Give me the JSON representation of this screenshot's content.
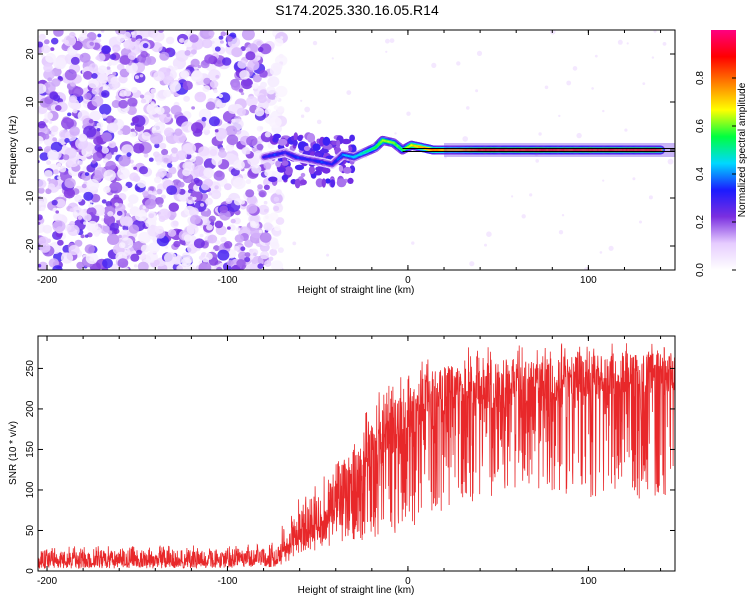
{
  "title": "S174.2025.330.16.05.R14",
  "chart_data": [
    {
      "type": "heatmap",
      "xlabel": "Height of straight line (km)",
      "ylabel": "Frequency (Hz)",
      "xlim": [
        -205,
        148
      ],
      "ylim": [
        -25,
        25
      ],
      "xticks": [
        -200,
        -100,
        0,
        100
      ],
      "yticks": [
        -20,
        -10,
        0,
        10,
        20
      ],
      "grid": false,
      "noise_region_x": [
        -205,
        -78
      ],
      "signal_line_frequency_hz": 0,
      "colorbar": {
        "label": "Normalized spectral amplitude",
        "range": [
          0,
          1
        ],
        "ticks": [
          "0.0",
          "0.2",
          "0.4",
          "0.6",
          "0.8"
        ],
        "colors": [
          "#ffffff",
          "#e6ccff",
          "#7b2fe0",
          "#1b1bff",
          "#00d8ff",
          "#00ff40",
          "#ffff00",
          "#ff8000",
          "#ff0000",
          "#ff0080"
        ]
      },
      "signal_track": [
        {
          "x": -80,
          "f": -1.5,
          "a": 0.3
        },
        {
          "x": -74,
          "f": -1.0,
          "a": 0.35
        },
        {
          "x": -68,
          "f": -0.5,
          "a": 0.3
        },
        {
          "x": -62,
          "f": -1.5,
          "a": 0.35
        },
        {
          "x": -55,
          "f": -2.0,
          "a": 0.3
        },
        {
          "x": -48,
          "f": -2.5,
          "a": 0.35
        },
        {
          "x": -42,
          "f": -3.0,
          "a": 0.3
        },
        {
          "x": -36,
          "f": -1.0,
          "a": 0.4
        },
        {
          "x": -30,
          "f": -1.5,
          "a": 0.45
        },
        {
          "x": -24,
          "f": -0.5,
          "a": 0.5
        },
        {
          "x": -18,
          "f": 0.5,
          "a": 0.55
        },
        {
          "x": -14,
          "f": 2.0,
          "a": 0.65
        },
        {
          "x": -8,
          "f": 1.5,
          "a": 0.6
        },
        {
          "x": -3,
          "f": 0.0,
          "a": 0.55
        },
        {
          "x": 2,
          "f": 1.0,
          "a": 0.7
        },
        {
          "x": 8,
          "f": 0.5,
          "a": 0.75
        },
        {
          "x": 14,
          "f": 0.0,
          "a": 0.8
        },
        {
          "x": 25,
          "f": 0.0,
          "a": 0.7
        },
        {
          "x": 40,
          "f": 0.0,
          "a": 0.85
        },
        {
          "x": 60,
          "f": 0.0,
          "a": 0.85
        },
        {
          "x": 80,
          "f": 0.0,
          "a": 0.85
        },
        {
          "x": 100,
          "f": 0.0,
          "a": 0.85
        },
        {
          "x": 120,
          "f": 0.0,
          "a": 0.85
        },
        {
          "x": 140,
          "f": 0.0,
          "a": 0.85
        }
      ]
    },
    {
      "type": "line",
      "xlabel": "Height of straight line (km)",
      "ylabel": "SNR (10 * v/v)",
      "xlim": [
        -205,
        148
      ],
      "ylim": [
        0,
        290
      ],
      "xticks": [
        -200,
        -100,
        0,
        100
      ],
      "yticks": [
        0,
        50,
        100,
        150,
        200,
        250
      ],
      "grid": false,
      "series": [
        {
          "name": "SNR",
          "color": "#e8282a",
          "envelope_x": [
            -205,
            -120,
            -72,
            -68,
            -60,
            -50,
            -40,
            -30,
            -20,
            -10,
            0,
            10,
            20,
            30,
            40,
            60,
            80,
            100,
            120,
            148
          ],
          "envelope_max": [
            30,
            32,
            35,
            75,
            95,
            110,
            140,
            175,
            215,
            235,
            245,
            265,
            270,
            275,
            278,
            280,
            282,
            283,
            285,
            285
          ],
          "envelope_min": [
            3,
            3,
            5,
            10,
            20,
            25,
            30,
            35,
            40,
            45,
            50,
            60,
            70,
            80,
            85,
            95,
            95,
            90,
            90,
            85
          ],
          "envelope_typ": [
            12,
            12,
            14,
            30,
            45,
            60,
            80,
            110,
            140,
            160,
            180,
            200,
            210,
            215,
            215,
            220,
            225,
            230,
            235,
            235
          ]
        }
      ]
    }
  ]
}
